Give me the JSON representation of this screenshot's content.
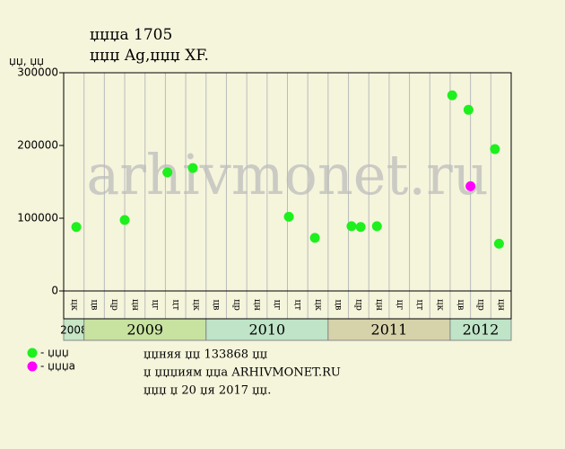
{
  "chart_data": {
    "type": "scatter",
    "title": "џџџа 1705",
    "subtitle": "џџџ Ag,џџџ XF.",
    "y_label": "џџ, џџ",
    "watermark": "arhivmonet.ru",
    "xlim": [
      0,
      22
    ],
    "ylim": [
      0,
      300000
    ],
    "yticks": [
      0,
      100000,
      200000,
      300000
    ],
    "x_categories": [
      "цк",
      "цв",
      "цр",
      "цн",
      "цг",
      "цт",
      "цк",
      "цв",
      "цр",
      "цн",
      "цг",
      "цт",
      "цк",
      "цв",
      "цр",
      "цн",
      "цг",
      "цт",
      "цк",
      "цв",
      "цр",
      "цн"
    ],
    "years": [
      {
        "label": "2008",
        "span": 1,
        "color": "#c6e6c6"
      },
      {
        "label": "2009",
        "span": 6,
        "color": "#c8e2a0"
      },
      {
        "label": "2010",
        "span": 6,
        "color": "#bfe4c8"
      },
      {
        "label": "2011",
        "span": 6,
        "color": "#d6d2aa"
      },
      {
        "label": "2012",
        "span": 3,
        "color": "#bfe4c8"
      }
    ],
    "series": [
      {
        "name": "- џџџ",
        "color": "#1ef01e",
        "x": [
          0.62,
          3.0,
          5.1,
          6.35,
          11.07,
          12.35,
          14.15,
          14.6,
          15.4,
          19.1,
          19.9,
          21.2,
          21.4
        ],
        "values": [
          88000,
          97500,
          163000,
          169000,
          102000,
          73000,
          89000,
          88000,
          89000,
          269000,
          249000,
          195000,
          65000
        ]
      },
      {
        "name": "- џџџа",
        "color": "#ff00ff",
        "x": [
          20.0
        ],
        "values": [
          144000
        ]
      }
    ],
    "notes": [
      "џџняя џџ 133868 џџ",
      "џ џџџиям џџа ARHIVMONET.RU",
      "џџџ џ 20 џя 2017 џџ."
    ]
  }
}
